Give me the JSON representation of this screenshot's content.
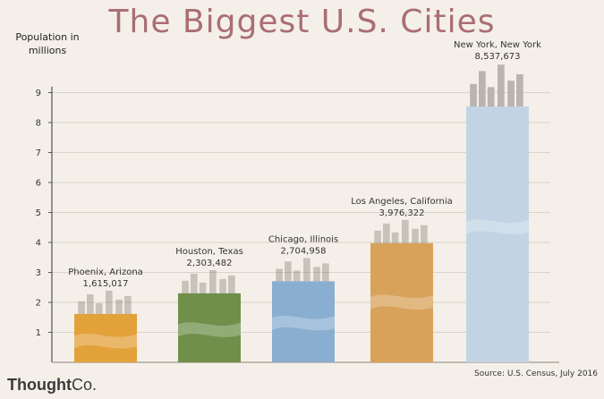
{
  "title": "The Biggest U.S. Cities",
  "logo": {
    "main": "Thought",
    "suffix": "Co."
  },
  "source": "Source: U.S. Census, July 2016",
  "chart_data": {
    "type": "bar",
    "title": "The Biggest U.S. Cities",
    "ylabel": "Population in millions",
    "xlabel": "",
    "ylim": [
      0,
      9.5
    ],
    "yticks": [
      1,
      2,
      3,
      4,
      5,
      6,
      7,
      8,
      9
    ],
    "grid": true,
    "categories": [
      "Phoenix, Arizona",
      "Houston, Texas",
      "Chicago, Illinois",
      "Los Angeles, California",
      "New York, New York"
    ],
    "value_labels": [
      "1,615,017",
      "2,303,482",
      "2,704,958",
      "3,976,322",
      "8,537,673"
    ],
    "values": [
      1.615017,
      2.303482,
      2.704958,
      3.976322,
      8.537673
    ],
    "colors": [
      "#e3a13a",
      "#6f8f4a",
      "#8aaed0",
      "#d8a25a",
      "#c2d4e4"
    ]
  }
}
